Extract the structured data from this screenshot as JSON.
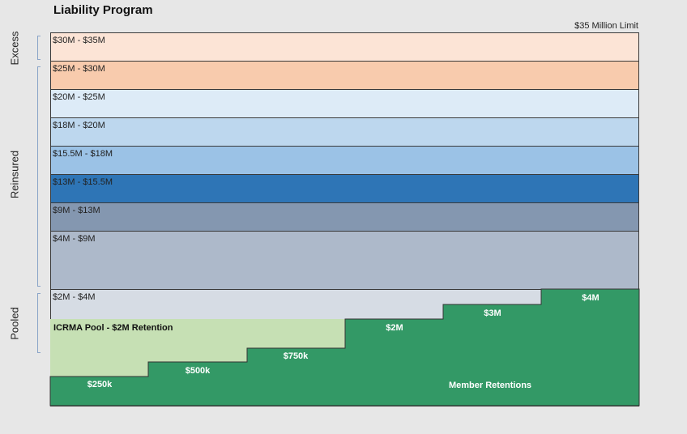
{
  "title": "Liability Program",
  "limit_label": "$35 Million Limit",
  "side_labels": {
    "excess": "Excess",
    "reinsured": "Reinsured",
    "pooled": "Pooled"
  },
  "layers": [
    {
      "label": "$30M - $35M",
      "color": "#fce4d6"
    },
    {
      "label": "$25M - $30M",
      "color": "#f8cbad"
    },
    {
      "label": "$20M - $25M",
      "color": "#ddebf7"
    },
    {
      "label": "$18M - $20M",
      "color": "#bdd7ee"
    },
    {
      "label": "$15.5M - $18M",
      "color": "#9bc2e6"
    },
    {
      "label": "$13M - $15.5M",
      "color": "#2e75b6"
    },
    {
      "label": "$9M - $13M",
      "color": "#8497b0"
    },
    {
      "label": "$4M - $9M",
      "color": "#adb9ca"
    }
  ],
  "pooled": {
    "top_band_label": "$2M - $4M",
    "top_band_color": "#d6dce4",
    "pool_label": "ICRMA Pool -  $2M Retention",
    "pool_color": "#c6e0b4",
    "retention_color": "#339966",
    "retention_steps": [
      "$250k",
      "$500k",
      "$750k",
      "$2M",
      "$3M",
      "$4M"
    ],
    "member_retentions_label": "Member Retentions"
  }
}
